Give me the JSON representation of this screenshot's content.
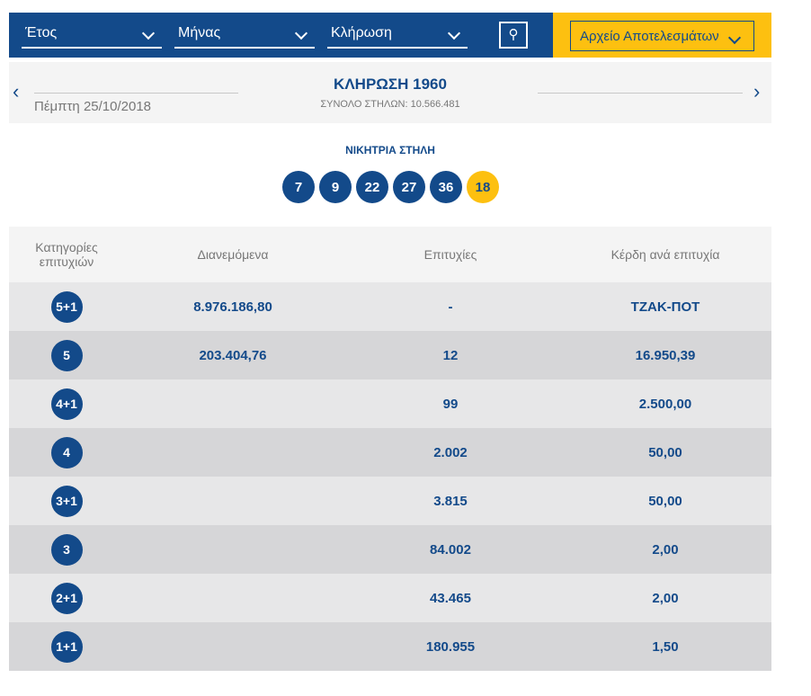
{
  "filters": {
    "year": "Έτος",
    "month": "Μήνας",
    "draw": "Κλήρωση",
    "archive": "Αρχείο Αποτελεσμάτων"
  },
  "draw": {
    "date": "Πέμπτη 25/10/2018",
    "title": "ΚΛΗΡΩΣΗ 1960",
    "total": "ΣΥΝΟΛΟ ΣΤΗΛΩΝ: 10.566.481"
  },
  "winning": {
    "label": "ΝΙΚΗΤΡΙΑ ΣΤΗΛΗ",
    "numbers": [
      "7",
      "9",
      "22",
      "27",
      "36"
    ],
    "bonus": "18"
  },
  "table": {
    "headers": [
      "Κατηγορίες επιτυχιών",
      "Διανεμόμενα",
      "Επιτυχίες",
      "Κέρδη ανά επιτυχία"
    ],
    "rows": [
      {
        "cat": "5+1",
        "dist": "8.976.186,80",
        "wins": "-",
        "prize": "ΤΖΑΚ-ΠΟΤ"
      },
      {
        "cat": "5",
        "dist": "203.404,76",
        "wins": "12",
        "prize": "16.950,39"
      },
      {
        "cat": "4+1",
        "dist": "",
        "wins": "99",
        "prize": "2.500,00"
      },
      {
        "cat": "4",
        "dist": "",
        "wins": "2.002",
        "prize": "50,00"
      },
      {
        "cat": "3+1",
        "dist": "",
        "wins": "3.815",
        "prize": "50,00"
      },
      {
        "cat": "3",
        "dist": "",
        "wins": "84.002",
        "prize": "2,00"
      },
      {
        "cat": "2+1",
        "dist": "",
        "wins": "43.465",
        "prize": "2,00"
      },
      {
        "cat": "1+1",
        "dist": "",
        "wins": "180.955",
        "prize": "1,50"
      }
    ]
  }
}
